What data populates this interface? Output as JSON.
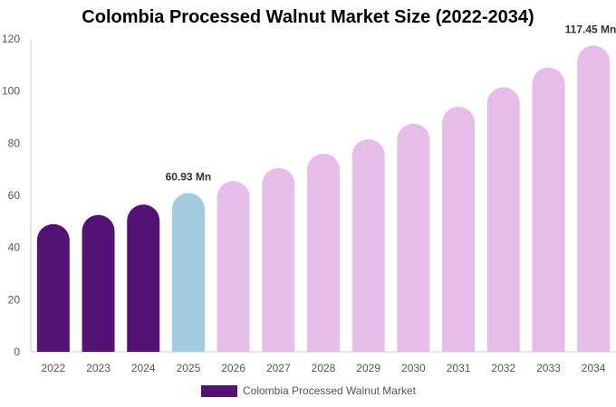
{
  "chart_data": {
    "type": "bar",
    "title": "Colombia Processed Walnut Market Size (2022-2034)",
    "categories": [
      "2022",
      "2023",
      "2024",
      "2025",
      "2026",
      "2027",
      "2028",
      "2029",
      "2030",
      "2031",
      "2032",
      "2033",
      "2034"
    ],
    "series": [
      {
        "name": "Colombia Processed Walnut Market",
        "values": [
          49.0,
          52.5,
          56.5,
          60.93,
          65.5,
          70.5,
          76.0,
          81.5,
          87.5,
          94.0,
          101.5,
          109.0,
          117.45
        ]
      }
    ],
    "data_labels": [
      {
        "category": "2025",
        "text": "60.93 Mn"
      },
      {
        "category": "2034",
        "text": "117.45 Mn"
      }
    ],
    "ylim": [
      0,
      120
    ],
    "yticks": [
      0,
      20,
      40,
      60,
      80,
      100,
      120
    ],
    "xlabel": "",
    "ylabel": "",
    "grid": false,
    "legend_position": "bottom",
    "colors": {
      "historical": "#541275",
      "current": "#a3cadf",
      "forecast": "#e6bde9",
      "legend": "#541275"
    },
    "bar_color_groups": [
      "historical",
      "historical",
      "historical",
      "current",
      "forecast",
      "forecast",
      "forecast",
      "forecast",
      "forecast",
      "forecast",
      "forecast",
      "forecast",
      "forecast"
    ]
  }
}
